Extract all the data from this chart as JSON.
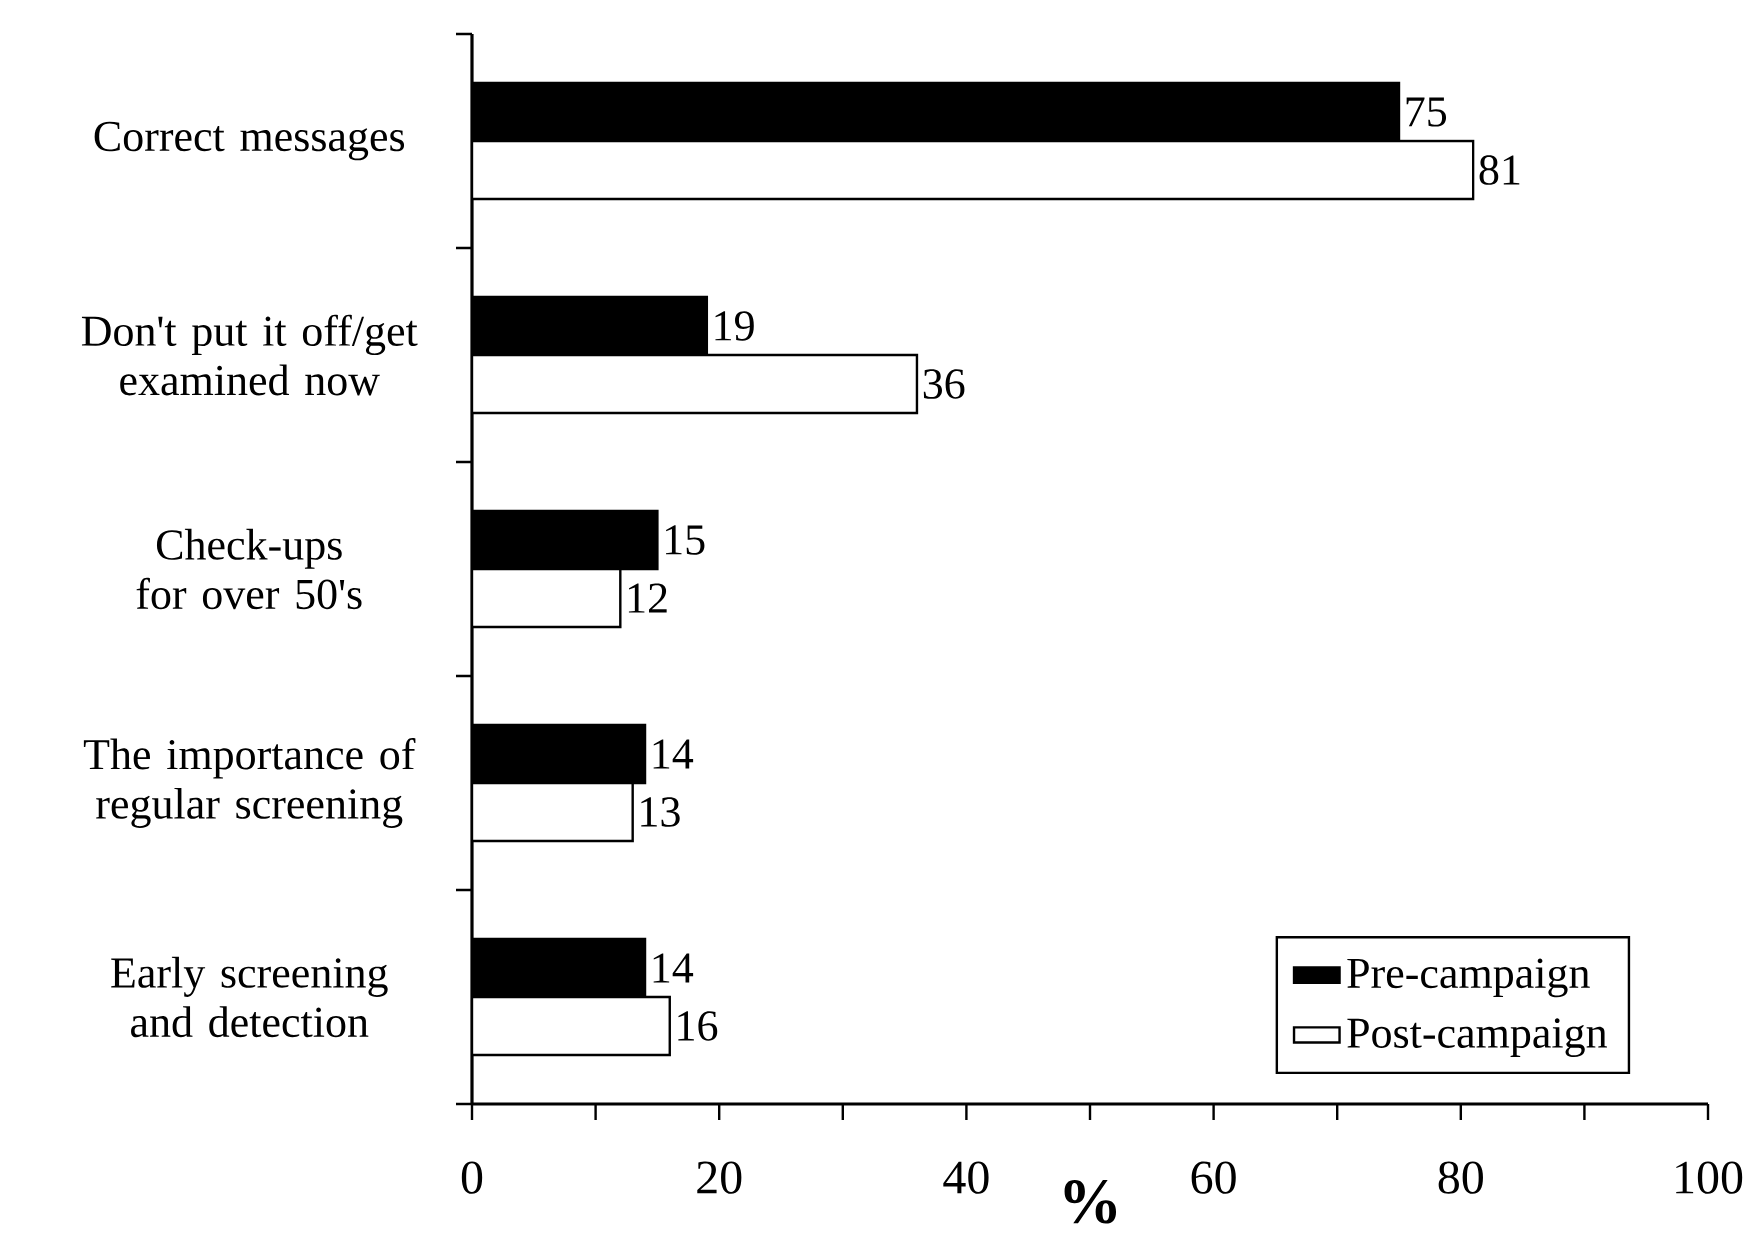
{
  "chart_data": {
    "type": "bar",
    "orientation": "horizontal",
    "xlabel": "%",
    "categories": [
      "Correct messages",
      "Don't put it off/get examined now",
      "Check-ups for over 50's",
      "The importance of regular screening",
      "Early screening and detection"
    ],
    "series": [
      {
        "name": "Pre-campaign",
        "color": "#000000",
        "values": [
          75,
          19,
          15,
          14,
          14
        ]
      },
      {
        "name": "Post-campaign",
        "color": "#ffffff",
        "values": [
          81,
          36,
          12,
          13,
          16
        ]
      }
    ],
    "xlim": [
      0,
      100
    ],
    "xticks": [
      0,
      20,
      40,
      60,
      80,
      100
    ],
    "data_labels": true,
    "legend": "bottom right",
    "grid": false
  }
}
